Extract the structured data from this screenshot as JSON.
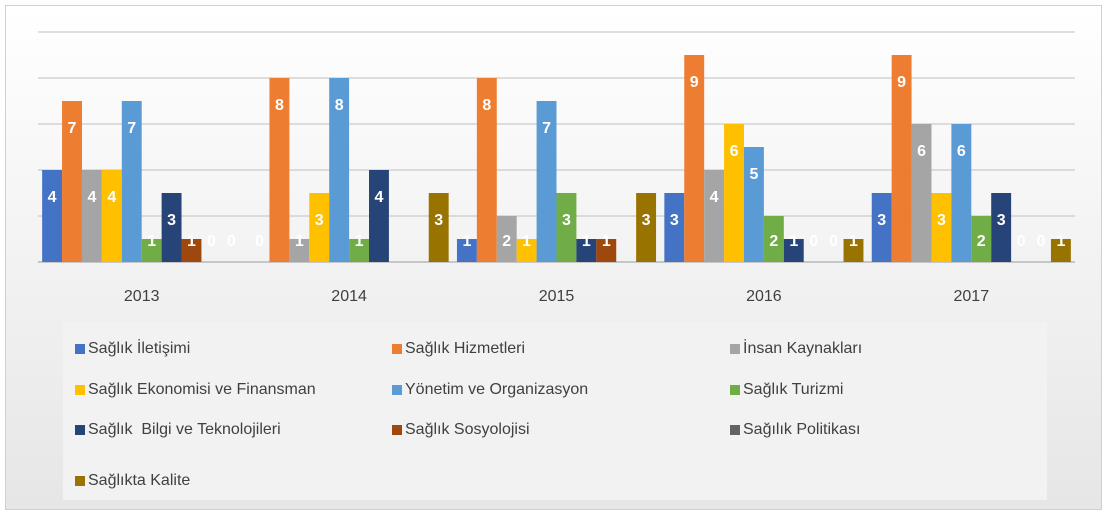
{
  "chart_data": {
    "type": "bar",
    "categories": [
      "2013",
      "2014",
      "2015",
      "2016",
      "2017"
    ],
    "series": [
      {
        "name": "Sağlık İletişimi",
        "color": "#4472c4",
        "values": [
          4,
          0,
          1,
          3,
          3
        ]
      },
      {
        "name": "Sağlık Hizmetleri",
        "color": "#ed7d31",
        "values": [
          7,
          8,
          8,
          9,
          9
        ]
      },
      {
        "name": "İnsan Kaynakları",
        "color": "#a5a5a5",
        "values": [
          4,
          1,
          2,
          4,
          6
        ]
      },
      {
        "name": "Sağlık Ekonomisi ve Finansman",
        "color": "#ffc000",
        "values": [
          4,
          3,
          1,
          6,
          3
        ]
      },
      {
        "name": "Yönetim ve Organizasyon",
        "color": "#5b9bd5",
        "values": [
          7,
          8,
          7,
          5,
          6
        ]
      },
      {
        "name": "Sağlık Turizmi",
        "color": "#70ad47",
        "values": [
          1,
          1,
          3,
          2,
          2
        ]
      },
      {
        "name": "Sağlık  Bilgi ve Teknolojileri",
        "color": "#264478",
        "values": [
          3,
          4,
          1,
          1,
          3
        ]
      },
      {
        "name": "Sağlık Sosyolojisi",
        "color": "#9e480e",
        "values": [
          1,
          null,
          1,
          0,
          0
        ]
      },
      {
        "name": "Sağılık Politikası",
        "color": "#636363",
        "values": [
          0,
          null,
          null,
          0,
          0
        ]
      },
      {
        "name": "Sağlıkta Kalite",
        "color": "#997300",
        "values": [
          0,
          3,
          3,
          1,
          1
        ]
      }
    ],
    "ylim": [
      0,
      10
    ],
    "yticks": [
      0,
      2,
      4,
      6,
      8,
      10
    ],
    "grid": true,
    "legend": "bottom"
  }
}
